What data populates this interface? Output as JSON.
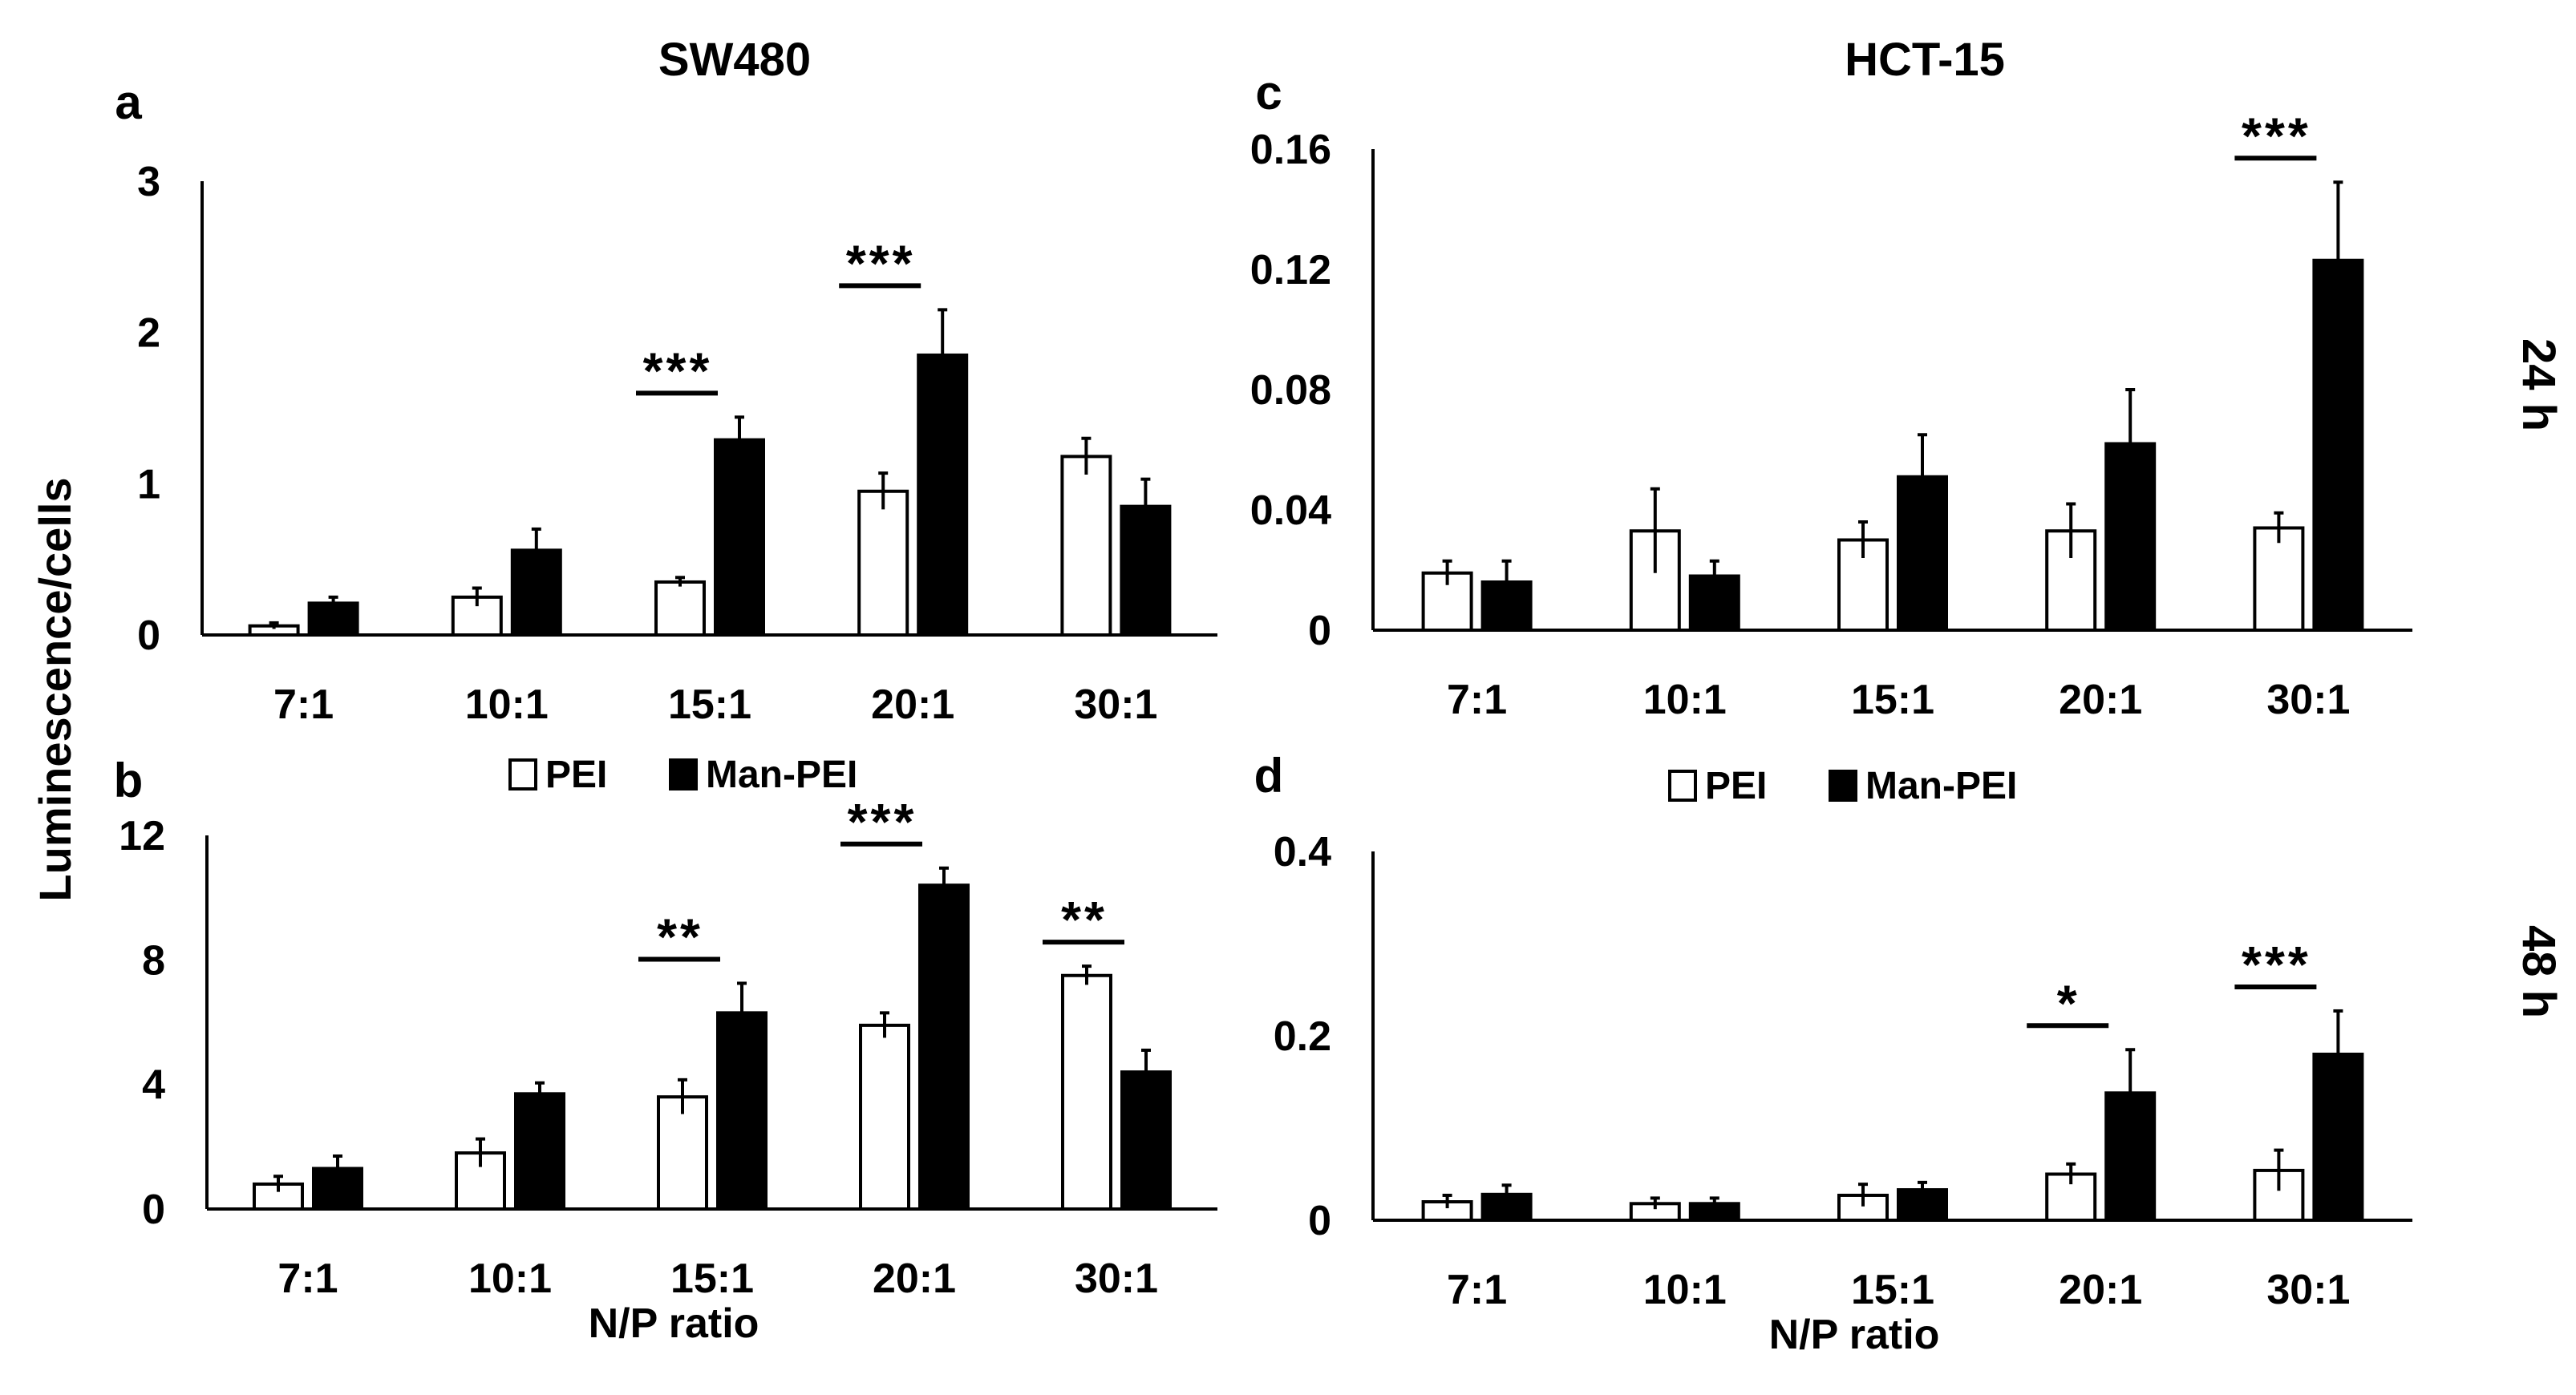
{
  "figure": {
    "y_axis_label": "Luminescence/cells",
    "col_titles": [
      "SW480",
      "HCT-15"
    ],
    "row_labels": [
      "24 h",
      "48 h"
    ]
  },
  "legend": {
    "items": [
      "PEI",
      "Man-PEI"
    ]
  },
  "series_style": {
    "PEI": "#ffffff",
    "Man-PEI": "#000000",
    "stroke": "#000000"
  },
  "chart_data": [
    {
      "panel": "a",
      "type": "bar",
      "title": "SW480",
      "time": "24 h",
      "categories": [
        "7:1",
        "10:1",
        "15:1",
        "20:1",
        "30:1"
      ],
      "xlabel": "",
      "ylabel": "Luminescence/cells",
      "ylim": [
        0,
        3
      ],
      "yticks": [
        "0",
        "1",
        "2",
        "3"
      ],
      "series": [
        {
          "name": "PEI",
          "values": [
            0.06,
            0.25,
            0.35,
            0.95,
            1.18
          ],
          "errors": [
            0.02,
            0.06,
            0.03,
            0.12,
            0.12
          ]
        },
        {
          "name": "Man-PEI",
          "values": [
            0.21,
            0.56,
            1.29,
            1.85,
            0.85
          ],
          "errors": [
            0.04,
            0.14,
            0.15,
            0.3,
            0.18
          ]
        }
      ],
      "significance": [
        "",
        "",
        "***",
        "***",
        ""
      ],
      "legend": "none"
    },
    {
      "panel": "b",
      "type": "bar",
      "title": "",
      "time": "48 h",
      "categories": [
        "7:1",
        "10:1",
        "15:1",
        "20:1",
        "30:1"
      ],
      "xlabel": "N/P ratio",
      "ylabel": "Luminescence/cells",
      "ylim": [
        0,
        12
      ],
      "yticks": [
        "0",
        "4",
        "8",
        "12"
      ],
      "series": [
        {
          "name": "PEI",
          "values": [
            0.8,
            1.8,
            3.6,
            5.9,
            7.5
          ],
          "errors": [
            0.25,
            0.45,
            0.55,
            0.4,
            0.3
          ]
        },
        {
          "name": "Man-PEI",
          "values": [
            1.3,
            3.7,
            6.3,
            10.4,
            4.4
          ],
          "errors": [
            0.4,
            0.35,
            0.95,
            0.55,
            0.7
          ]
        }
      ],
      "significance": [
        "",
        "",
        "**",
        "***",
        "**"
      ],
      "legend": "top-center"
    },
    {
      "panel": "c",
      "type": "bar",
      "title": "HCT-15",
      "time": "24 h",
      "categories": [
        "7:1",
        "10:1",
        "15:1",
        "20:1",
        "30:1"
      ],
      "xlabel": "",
      "ylabel": "",
      "ylim": [
        0,
        0.16
      ],
      "yticks": [
        "0",
        "0.04",
        "0.08",
        "0.12",
        "0.16"
      ],
      "series": [
        {
          "name": "PEI",
          "values": [
            0.019,
            0.033,
            0.03,
            0.033,
            0.034
          ],
          "errors": [
            0.004,
            0.014,
            0.006,
            0.009,
            0.005
          ]
        },
        {
          "name": "Man-PEI",
          "values": [
            0.016,
            0.018,
            0.051,
            0.062,
            0.123
          ],
          "errors": [
            0.007,
            0.005,
            0.014,
            0.018,
            0.026
          ]
        }
      ],
      "significance": [
        "",
        "",
        "",
        "",
        "***"
      ],
      "legend": "none"
    },
    {
      "panel": "d",
      "type": "bar",
      "title": "",
      "time": "48 h",
      "categories": [
        "7:1",
        "10:1",
        "15:1",
        "20:1",
        "30:1"
      ],
      "xlabel": "N/P ratio",
      "ylabel": "",
      "ylim": [
        0,
        0.4
      ],
      "yticks": [
        "0",
        "0.2",
        "0.4"
      ],
      "series": [
        {
          "name": "PEI",
          "values": [
            0.02,
            0.018,
            0.027,
            0.05,
            0.054
          ],
          "errors": [
            0.007,
            0.006,
            0.012,
            0.011,
            0.022
          ]
        },
        {
          "name": "Man-PEI",
          "values": [
            0.028,
            0.018,
            0.033,
            0.138,
            0.18
          ],
          "errors": [
            0.01,
            0.006,
            0.008,
            0.047,
            0.047
          ]
        }
      ],
      "significance": [
        "",
        "",
        "",
        "*",
        "***"
      ],
      "legend": "top-center"
    }
  ]
}
